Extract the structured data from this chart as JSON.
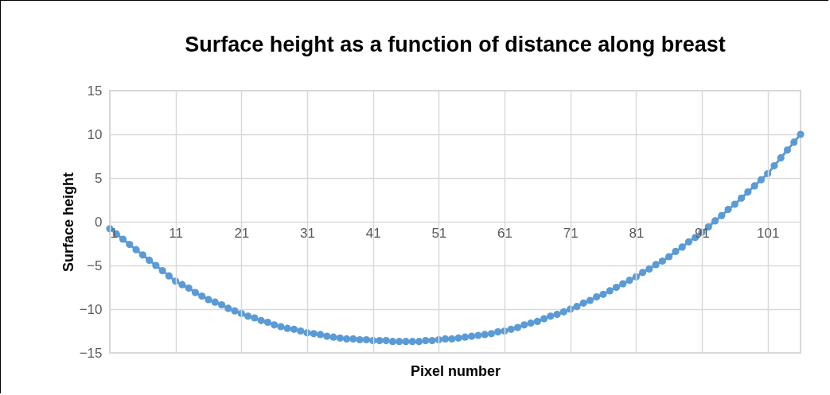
{
  "chart_data": {
    "type": "line",
    "title": "Surface height as a function of distance along breast",
    "xlabel": "Pixel number",
    "ylabel": "Surface height",
    "x": [
      1,
      2,
      3,
      4,
      5,
      6,
      7,
      8,
      9,
      10,
      11,
      12,
      13,
      14,
      15,
      16,
      17,
      18,
      19,
      20,
      21,
      22,
      23,
      24,
      25,
      26,
      27,
      28,
      29,
      30,
      31,
      32,
      33,
      34,
      35,
      36,
      37,
      38,
      39,
      40,
      41,
      42,
      43,
      44,
      45,
      46,
      47,
      48,
      49,
      50,
      51,
      52,
      53,
      54,
      55,
      56,
      57,
      58,
      59,
      60,
      61,
      62,
      63,
      64,
      65,
      66,
      67,
      68,
      69,
      70,
      71,
      72,
      73,
      74,
      75,
      76,
      77,
      78,
      79,
      80,
      81,
      82,
      83,
      84,
      85,
      86,
      87,
      88,
      89,
      90,
      91,
      92,
      93,
      94,
      95,
      96,
      97,
      98,
      99,
      100,
      101,
      102,
      103,
      104,
      105,
      106
    ],
    "series": [
      {
        "color": "#5b9bd5",
        "values": [
          -0.8,
          -1.4,
          -2.0,
          -2.6,
          -3.2,
          -3.8,
          -4.4,
          -5.0,
          -5.6,
          -6.2,
          -6.8,
          -7.2,
          -7.6,
          -8.1,
          -8.5,
          -8.9,
          -9.2,
          -9.5,
          -9.9,
          -10.2,
          -10.5,
          -10.8,
          -11.0,
          -11.3,
          -11.5,
          -11.8,
          -12.0,
          -12.2,
          -12.3,
          -12.5,
          -12.7,
          -12.8,
          -12.9,
          -13.1,
          -13.2,
          -13.3,
          -13.4,
          -13.4,
          -13.5,
          -13.5,
          -13.6,
          -13.6,
          -13.6,
          -13.7,
          -13.7,
          -13.7,
          -13.7,
          -13.7,
          -13.6,
          -13.6,
          -13.5,
          -13.4,
          -13.4,
          -13.3,
          -13.2,
          -13.1,
          -13.0,
          -12.9,
          -12.8,
          -12.6,
          -12.5,
          -12.3,
          -12.1,
          -11.8,
          -11.6,
          -11.4,
          -11.1,
          -10.8,
          -10.6,
          -10.3,
          -10.0,
          -9.7,
          -9.3,
          -9.0,
          -8.6,
          -8.3,
          -7.9,
          -7.5,
          -7.1,
          -6.7,
          -6.3,
          -5.8,
          -5.4,
          -4.9,
          -4.5,
          -4.0,
          -3.4,
          -2.9,
          -2.3,
          -1.8,
          -1.2,
          -0.6,
          0.1,
          0.7,
          1.4,
          2.0,
          2.7,
          3.4,
          4.1,
          4.8,
          5.5,
          6.4,
          7.3,
          8.2,
          9.1,
          10.0
        ]
      }
    ],
    "xlim": [
      1,
      106
    ],
    "xticks": [
      1,
      11,
      21,
      31,
      41,
      51,
      61,
      71,
      81,
      91,
      101
    ],
    "ylim": [
      -15,
      15
    ],
    "yticks": [
      -15,
      -10,
      -5,
      0,
      5,
      10,
      15
    ],
    "grid": true,
    "marker": "circle",
    "line_style": "solid"
  }
}
